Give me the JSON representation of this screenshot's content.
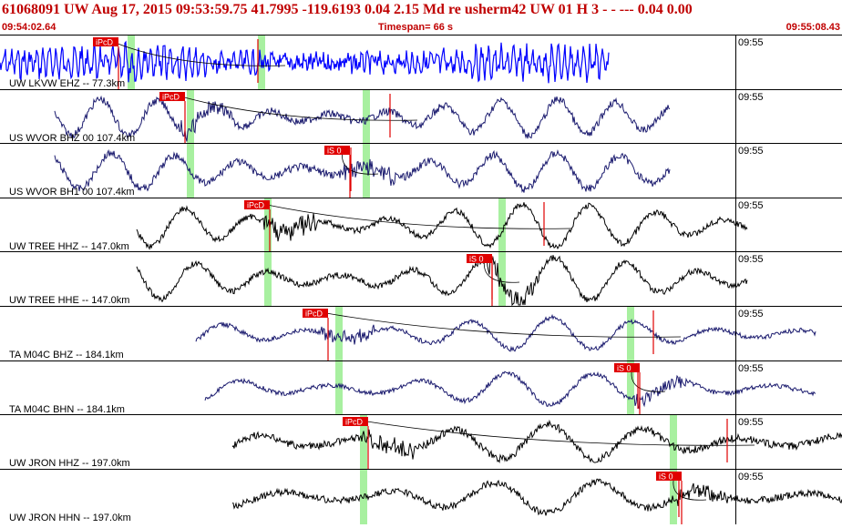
{
  "header": {
    "title": "61068091 UW Aug 17, 2015 09:53:59.75    41.7995 -119.6193  0.04 2.15 Md re    usherm42 UW 01 H    3  -  - ---   0.04 0.00",
    "start_time": "09:54:02.64",
    "timespan": "Timespan=  66 s",
    "end_time": "09:55:08.43"
  },
  "traces": [
    {
      "label": "UW LKVW EHZ -- 77.3km",
      "time": "09:55",
      "pick": "iPcD",
      "color": "#0000ff"
    },
    {
      "label": "US WVOR BHZ 00 107.4km",
      "time": "09:55",
      "pick": "iPcD",
      "color": "#1a1a6e"
    },
    {
      "label": "US WVOR BH1 00 107.4km",
      "time": "09:55",
      "pick": "iS 0",
      "color": "#1a1a6e"
    },
    {
      "label": "UW TREE HHZ -- 147.0km",
      "time": "09:55",
      "pick": "iPcD",
      "color": "#000000"
    },
    {
      "label": "UW TREE HHE -- 147.0km",
      "time": "09:55",
      "pick": "iS 0",
      "color": "#000000"
    },
    {
      "label": "TA M04C BHZ -- 184.1km",
      "time": "09:55",
      "pick": "iPcD",
      "color": "#1a1a6e"
    },
    {
      "label": "TA M04C BHN -- 184.1km",
      "time": "09:55",
      "pick": "iS 0",
      "color": "#1a1a6e"
    },
    {
      "label": "UW JRON HHZ -- 197.0km",
      "time": "09:55",
      "pick": "iPcD",
      "color": "#000000"
    },
    {
      "label": "UW JRON HHN -- 197.0km",
      "time": "09:55",
      "pick": "iS 0",
      "color": "#000000"
    }
  ]
}
